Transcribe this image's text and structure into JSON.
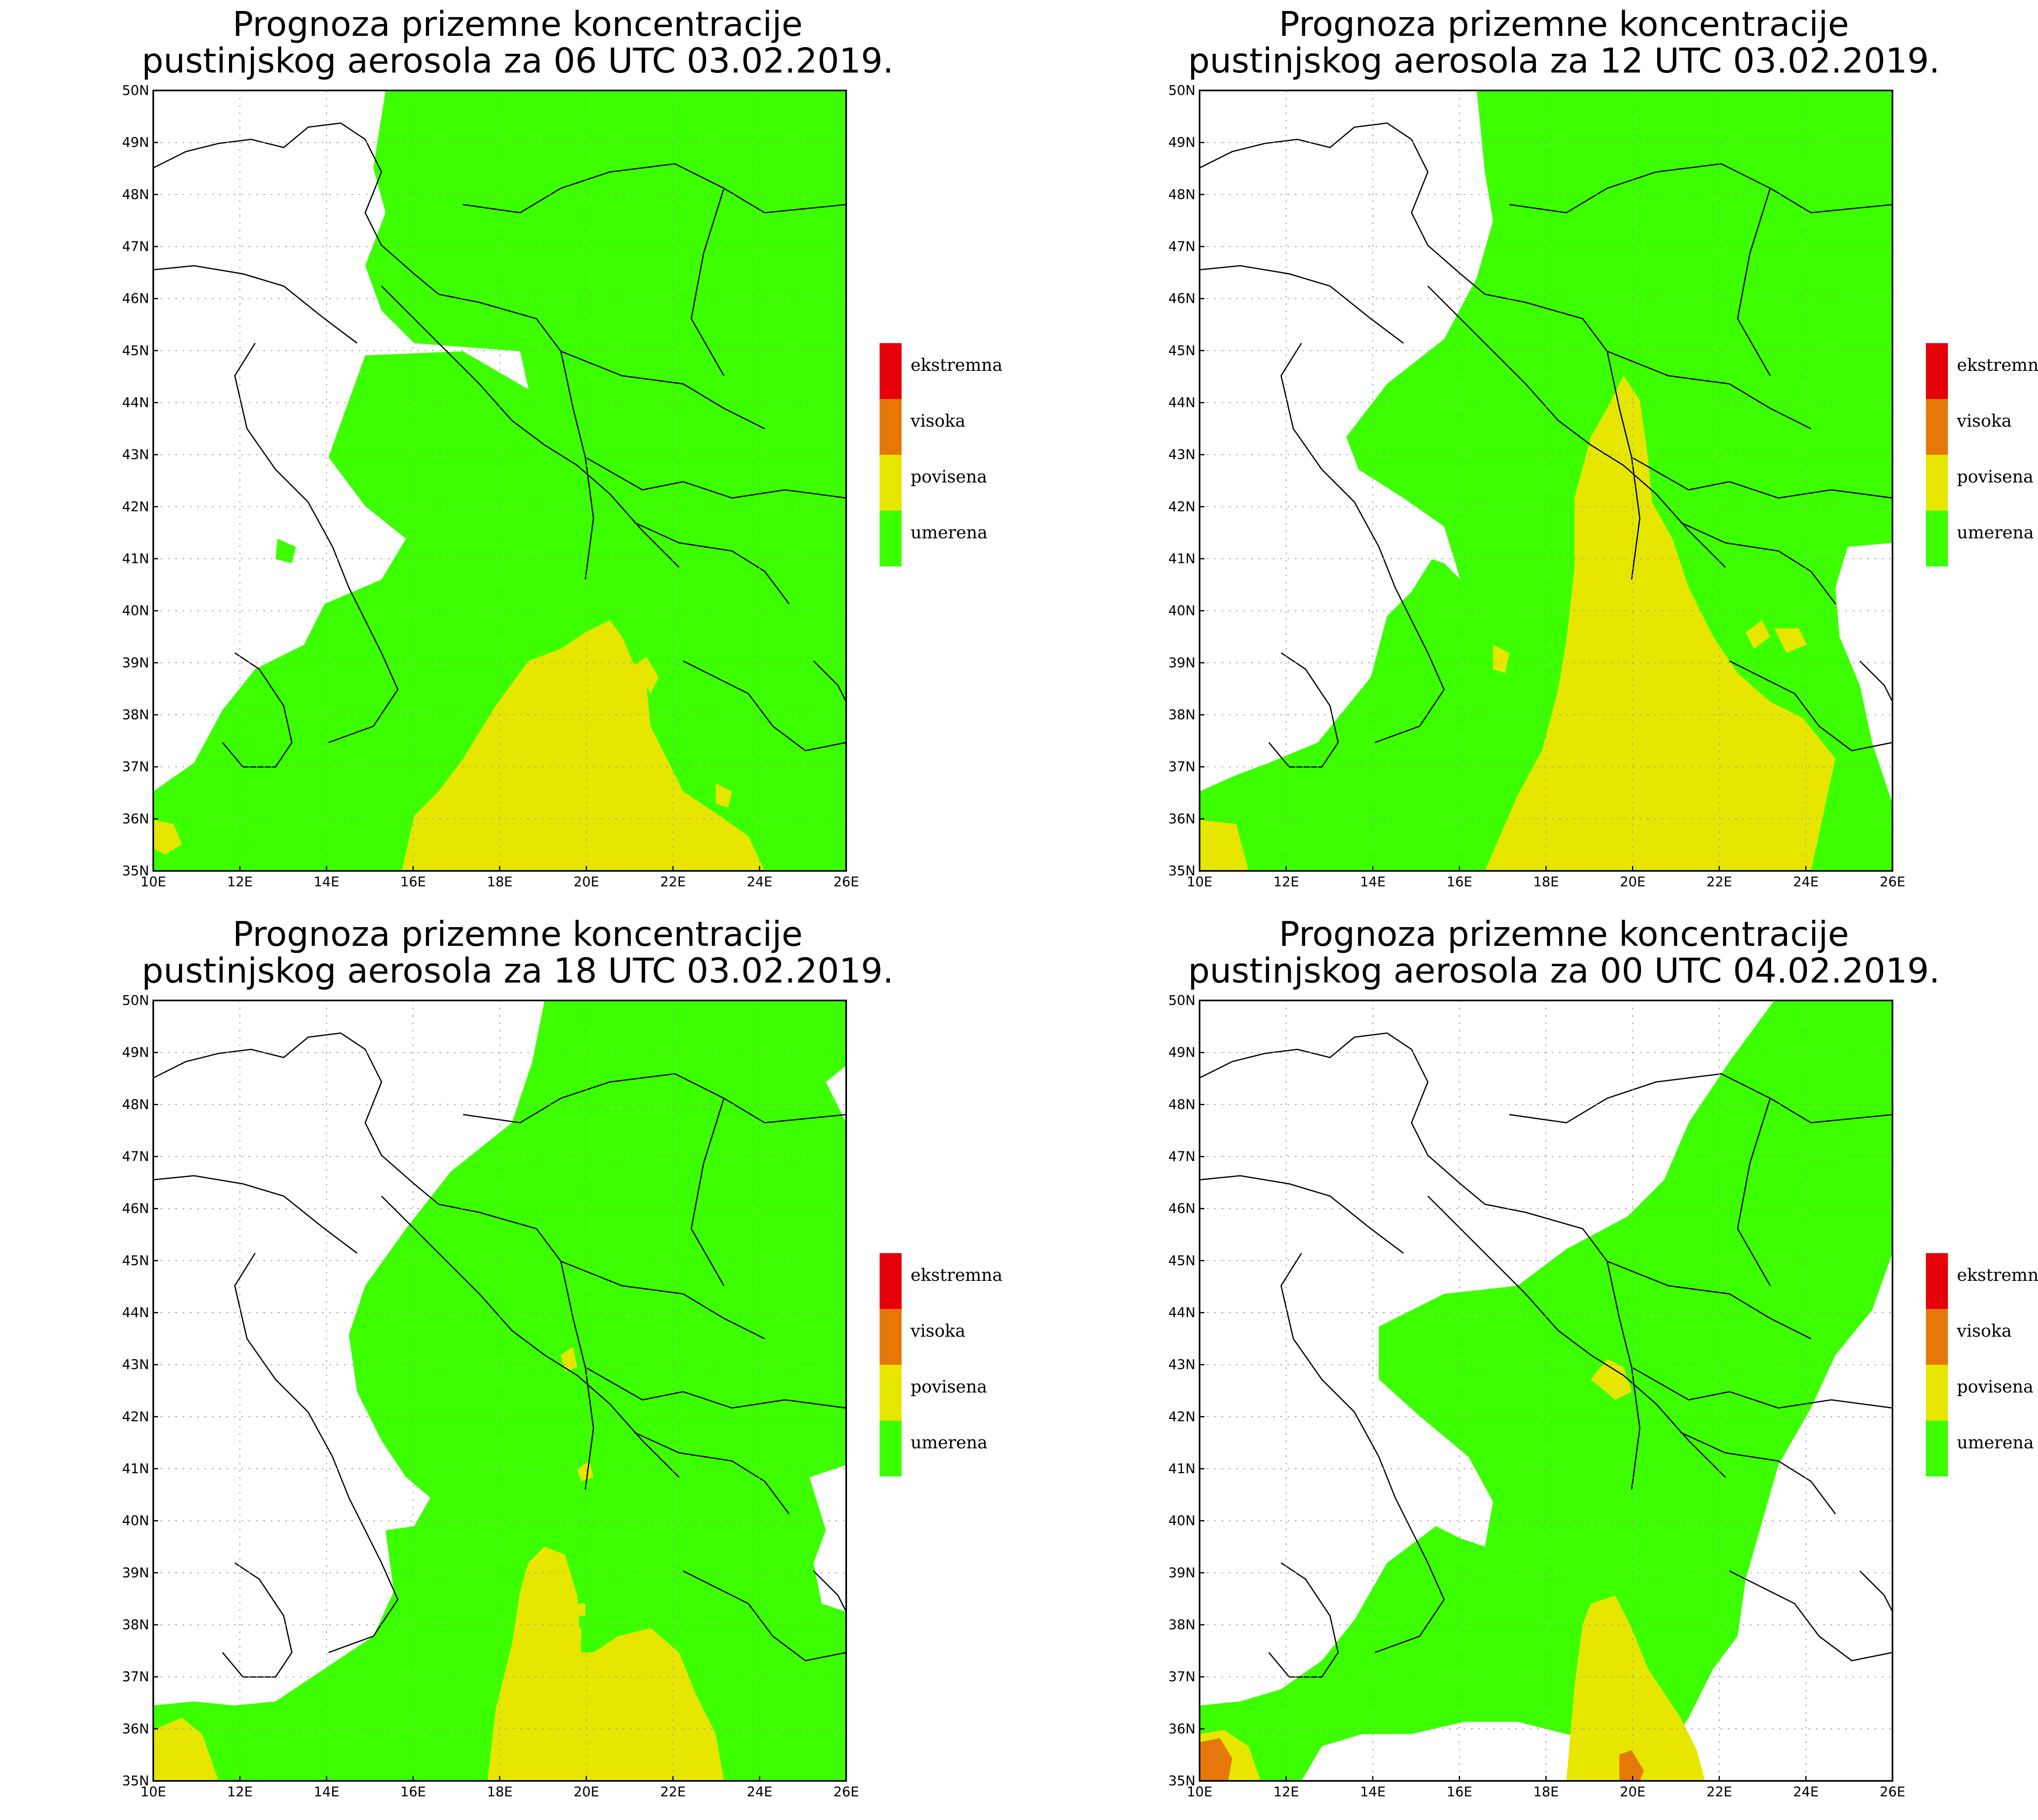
{
  "x_ticks": [
    "10E",
    "12E",
    "14E",
    "16E",
    "18E",
    "20E",
    "22E",
    "24E",
    "26E"
  ],
  "y_ticks": [
    "35N",
    "36N",
    "37N",
    "38N",
    "39N",
    "40N",
    "41N",
    "42N",
    "43N",
    "44N",
    "45N",
    "46N",
    "47N",
    "48N",
    "49N",
    "50N"
  ],
  "colors": {
    "ekstremna": "#e6000a",
    "visoka": "#e6780a",
    "povisena": "#e6e600",
    "umerena": "#3cff00",
    "boundary": "#000000",
    "grid": "#999999"
  },
  "legend": [
    {
      "label": "ekstremna",
      "color": "#e6000a"
    },
    {
      "label": "visoka",
      "color": "#e6780a"
    },
    {
      "label": "povisena",
      "color": "#e6e600"
    },
    {
      "label": "umerena",
      "color": "#3cff00"
    }
  ],
  "panels": [
    {
      "title_line1": "Prognoza prizemne koncentracije",
      "title_line2": "pustinjskog aerosola za 06 UTC 03.02.2019."
    },
    {
      "title_line1": "Prognoza prizemne koncentracije",
      "title_line2": "pustinjskog aerosola za 12 UTC 03.02.2019."
    },
    {
      "title_line1": "Prognoza prizemne koncentracije",
      "title_line2": "pustinjskog aerosola za 18 UTC 03.02.2019."
    },
    {
      "title_line1": "Prognoza prizemne koncentracije",
      "title_line2": "pustinjskog aerosola za 00 UTC 04.02.2019."
    }
  ]
}
